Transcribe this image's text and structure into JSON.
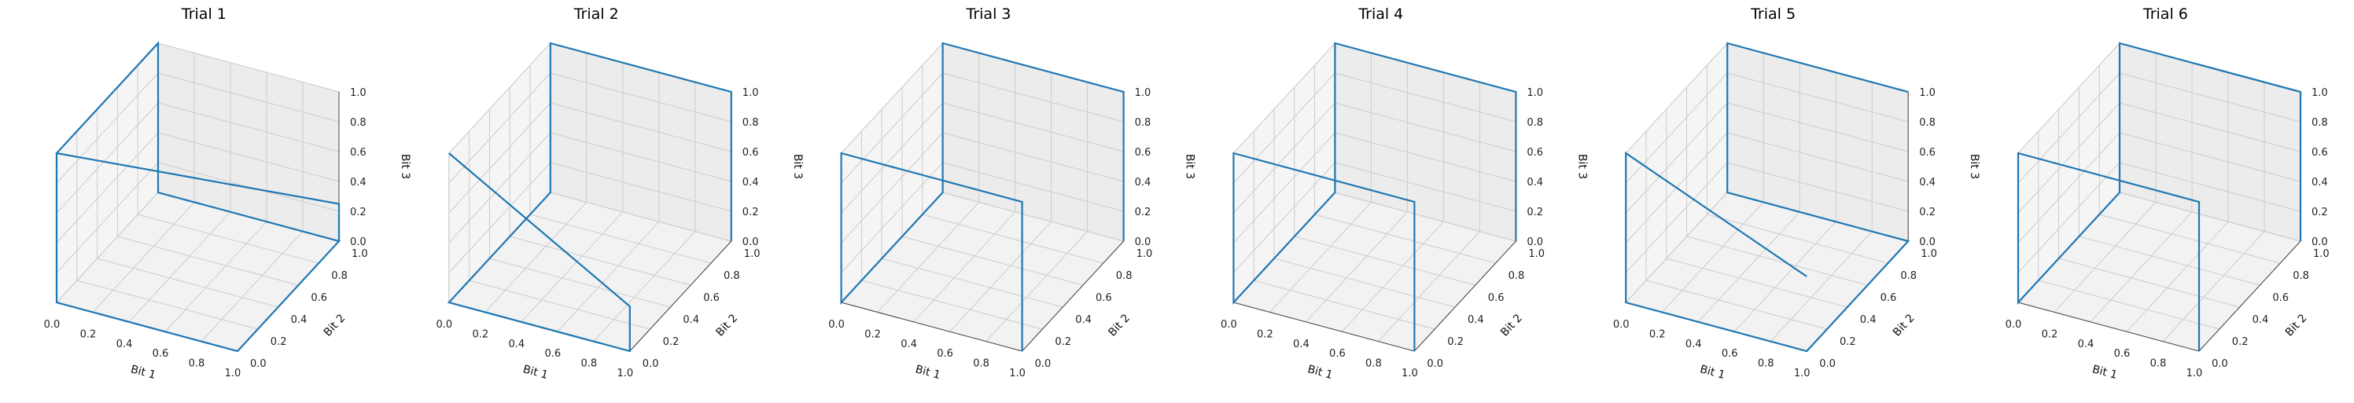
{
  "chart_data": [
    {
      "type": "line3d",
      "title": "Trial 1",
      "xlabel": "Bit 1",
      "ylabel": "Bit 2",
      "zlabel": "Bit 3",
      "xlim": [
        0,
        1
      ],
      "ylim": [
        0,
        1
      ],
      "zlim": [
        0,
        1
      ],
      "xticks": [
        "0.0",
        "0.2",
        "0.4",
        "0.6",
        "0.8",
        "1.0"
      ],
      "yticks": [
        "0.0",
        "0.2",
        "0.4",
        "0.6",
        "0.8",
        "1.0"
      ],
      "zticks": [
        "0.0",
        "0.2",
        "0.4",
        "0.6",
        "0.8",
        "1.0"
      ],
      "path": [
        [
          0,
          0,
          1
        ],
        [
          0,
          0,
          0
        ],
        [
          1,
          0,
          0
        ],
        [
          1,
          1,
          0
        ],
        [
          0,
          1,
          0
        ],
        [
          0,
          1,
          1
        ],
        [
          0,
          0,
          1
        ],
        [
          1,
          1,
          0.25
        ],
        [
          1,
          1,
          0
        ]
      ]
    },
    {
      "type": "line3d",
      "title": "Trial 2",
      "xlabel": "Bit 1",
      "ylabel": "Bit 2",
      "zlabel": "Bit 3",
      "xlim": [
        0,
        1
      ],
      "ylim": [
        0,
        1
      ],
      "zlim": [
        0,
        1
      ],
      "xticks": [
        "0.0",
        "0.2",
        "0.4",
        "0.6",
        "0.8",
        "1.0"
      ],
      "yticks": [
        "0.0",
        "0.2",
        "0.4",
        "0.6",
        "0.8",
        "1.0"
      ],
      "zticks": [
        "0.0",
        "0.2",
        "0.4",
        "0.6",
        "0.8",
        "1.0"
      ],
      "path": [
        [
          0,
          0,
          1
        ],
        [
          1,
          0,
          0.3
        ],
        [
          1,
          0,
          0
        ],
        [
          0,
          0,
          0
        ],
        [
          0,
          1,
          0
        ],
        [
          0,
          1,
          1
        ],
        [
          1,
          1,
          1
        ],
        [
          1,
          1,
          0
        ]
      ]
    },
    {
      "type": "line3d",
      "title": "Trial 3",
      "xlabel": "Bit 1",
      "ylabel": "Bit 2",
      "zlabel": "Bit 3",
      "xlim": [
        0,
        1
      ],
      "ylim": [
        0,
        1
      ],
      "zlim": [
        0,
        1
      ],
      "xticks": [
        "0.0",
        "0.2",
        "0.4",
        "0.6",
        "0.8",
        "1.0"
      ],
      "yticks": [
        "0.0",
        "0.2",
        "0.4",
        "0.6",
        "0.8",
        "1.0"
      ],
      "zticks": [
        "0.0",
        "0.2",
        "0.4",
        "0.6",
        "0.8",
        "1.0"
      ],
      "path": [
        [
          1,
          1,
          0
        ],
        [
          1,
          1,
          1
        ],
        [
          0,
          1,
          1
        ],
        [
          0,
          1,
          0
        ],
        [
          0,
          0,
          0
        ],
        [
          0,
          0,
          1
        ],
        [
          1,
          0,
          1
        ],
        [
          1,
          0,
          0
        ]
      ]
    },
    {
      "type": "line3d",
      "title": "Trial 4",
      "xlabel": "Bit 1",
      "ylabel": "Bit 2",
      "zlabel": "Bit 3",
      "xlim": [
        0,
        1
      ],
      "ylim": [
        0,
        1
      ],
      "zlim": [
        0,
        1
      ],
      "xticks": [
        "0.0",
        "0.2",
        "0.4",
        "0.6",
        "0.8",
        "1.0"
      ],
      "yticks": [
        "0.0",
        "0.2",
        "0.4",
        "0.6",
        "0.8",
        "1.0"
      ],
      "zticks": [
        "0.0",
        "0.2",
        "0.4",
        "0.6",
        "0.8",
        "1.0"
      ],
      "path": [
        [
          1,
          1,
          0
        ],
        [
          1,
          1,
          1
        ],
        [
          0,
          1,
          1
        ],
        [
          0,
          1,
          0
        ],
        [
          0,
          0,
          0
        ],
        [
          0,
          0,
          1
        ],
        [
          1,
          0,
          1
        ],
        [
          1,
          0,
          0
        ]
      ]
    },
    {
      "type": "line3d",
      "title": "Trial 5",
      "xlabel": "Bit 1",
      "ylabel": "Bit 2",
      "zlabel": "Bit 3",
      "xlim": [
        0,
        1
      ],
      "ylim": [
        0,
        1
      ],
      "zlim": [
        0,
        1
      ],
      "xticks": [
        "0.0",
        "0.2",
        "0.4",
        "0.6",
        "0.8",
        "1.0"
      ],
      "yticks": [
        "0.0",
        "0.2",
        "0.4",
        "0.6",
        "0.8",
        "1.0"
      ],
      "zticks": [
        "0.0",
        "0.2",
        "0.4",
        "0.6",
        "0.8",
        "1.0"
      ],
      "path": [
        [
          1,
          0,
          0.5
        ],
        [
          0,
          0,
          1
        ],
        [
          0,
          0,
          0
        ],
        [
          1,
          0,
          0
        ],
        [
          1,
          1,
          0
        ],
        [
          0,
          1,
          0
        ],
        [
          0,
          1,
          1
        ],
        [
          1,
          1,
          1
        ]
      ]
    },
    {
      "type": "line3d",
      "title": "Trial 6",
      "xlabel": "Bit 1",
      "ylabel": "Bit 2",
      "zlabel": "Bit 3",
      "xlim": [
        0,
        1
      ],
      "ylim": [
        0,
        1
      ],
      "zlim": [
        0,
        1
      ],
      "xticks": [
        "0.0",
        "0.2",
        "0.4",
        "0.6",
        "0.8",
        "1.0"
      ],
      "yticks": [
        "0.0",
        "0.2",
        "0.4",
        "0.6",
        "0.8",
        "1.0"
      ],
      "zticks": [
        "0.0",
        "0.2",
        "0.4",
        "0.6",
        "0.8",
        "1.0"
      ],
      "path": [
        [
          1,
          1,
          0
        ],
        [
          1,
          1,
          1
        ],
        [
          0,
          1,
          1
        ],
        [
          0,
          1,
          0
        ],
        [
          0,
          0,
          0
        ],
        [
          0,
          0,
          1
        ],
        [
          1,
          0,
          1
        ],
        [
          1,
          0,
          0
        ]
      ]
    }
  ],
  "colors": {
    "line": "#1f77b4",
    "pane": "#f2f2f2",
    "grid": "#cccccc",
    "text": "#222222"
  }
}
